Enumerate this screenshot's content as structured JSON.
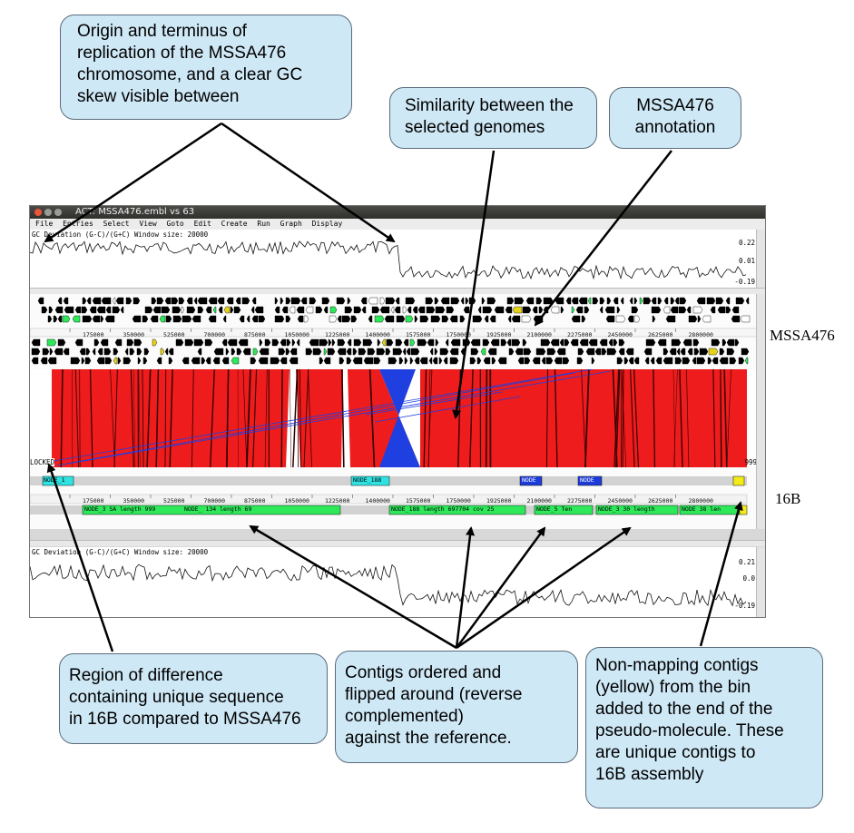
{
  "window": {
    "title": "ACT: MSSA476.embl vs 63",
    "menu": [
      "File",
      "Entries",
      "Select",
      "View",
      "Goto",
      "Edit",
      "Create",
      "Run",
      "Graph",
      "Display"
    ],
    "gc_plot_label": "GC Deviation (G-C)/(G+C)  Window size: 20000",
    "gc_top_values": [
      "0.22",
      "0.01",
      "-0.19"
    ],
    "gc_bottom_values": [
      "0.21",
      "0.0",
      "-0.19"
    ],
    "ruler_ticks": [
      "175000",
      "350000",
      "525000",
      "700000",
      "875000",
      "1050000",
      "1225000",
      "1400000",
      "1575000",
      "1750000",
      "1925000",
      "2100000",
      "2275000",
      "2450000",
      "2625000",
      "2800000"
    ],
    "locked_label": "LOCKED",
    "zoom_value": "999",
    "contig_labels": [
      "NODE_1",
      "NODE_188",
      "NODE",
      "NODE"
    ],
    "contig_strip_labels": [
      "NODE_3 SA length 999",
      "NODE_ 134 length 69",
      "NODE_188 length 697704 cov 25",
      "NODE_5 Ten",
      "NODE_3 30 length",
      "NODE 38 len"
    ]
  },
  "genome_labels": {
    "reference": "MSSA476",
    "query": "16B"
  },
  "callouts": {
    "origin": [
      "Origin and terminus of",
      "replication of the MSSA476",
      "chromosome, and a clear GC",
      "skew visible between"
    ],
    "similarity": [
      "Similarity between the",
      "selected genomes"
    ],
    "annotation": [
      "MSSA476",
      "annotation"
    ],
    "region": [
      "Region of difference",
      "containing unique sequence",
      "in 16B compared to MSSA476"
    ],
    "contigs": [
      "Contigs ordered and",
      "flipped around (reverse",
      "complemented)",
      "against the reference."
    ],
    "nonmapping": [
      "Non-mapping contigs",
      "(yellow) from the bin",
      "added to the end of the",
      "pseudo-molecule. These",
      "are unique contigs to",
      "16B assembly"
    ]
  },
  "colors": {
    "match": "#ee1c1c",
    "inversion": "#1f3fe0",
    "callout_bg": "#cfe8f6",
    "contig_cyan": "#2fe3e3",
    "contig_green": "#2ee85a",
    "contig_blue": "#1c3bd8",
    "contig_yellow": "#f3ea18"
  },
  "icons": [
    "close-icon",
    "minimize-icon",
    "maximize-icon",
    "arrow-icon"
  ]
}
